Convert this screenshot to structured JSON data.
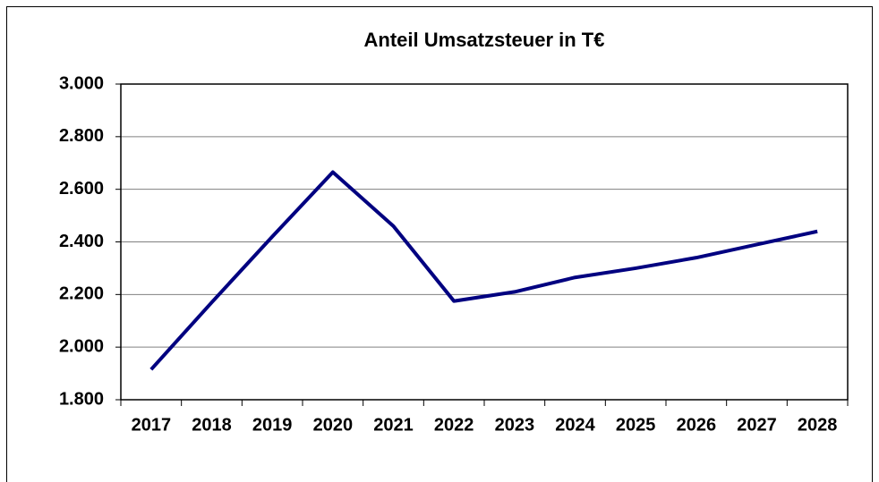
{
  "chart_data": {
    "type": "line",
    "title": "Anteil Umsatzsteuer in T€",
    "categories": [
      "2017",
      "2018",
      "2019",
      "2020",
      "2021",
      "2022",
      "2023",
      "2024",
      "2025",
      "2026",
      "2027",
      "2028"
    ],
    "series": [
      {
        "name": "Anteil Umsatzsteuer",
        "color": "#000080",
        "values": [
          1915,
          2170,
          2420,
          2665,
          2460,
          2175,
          2210,
          2265,
          2300,
          2340,
          2390,
          2440
        ]
      }
    ],
    "ylim": [
      1800,
      3000
    ],
    "yticks": [
      {
        "value": 1800,
        "label": "1.800"
      },
      {
        "value": 2000,
        "label": "2.000"
      },
      {
        "value": 2200,
        "label": "2.200"
      },
      {
        "value": 2400,
        "label": "2.400"
      },
      {
        "value": 2600,
        "label": "2.600"
      },
      {
        "value": 2800,
        "label": "2.800"
      },
      {
        "value": 3000,
        "label": "3.000"
      }
    ],
    "grid": true
  }
}
